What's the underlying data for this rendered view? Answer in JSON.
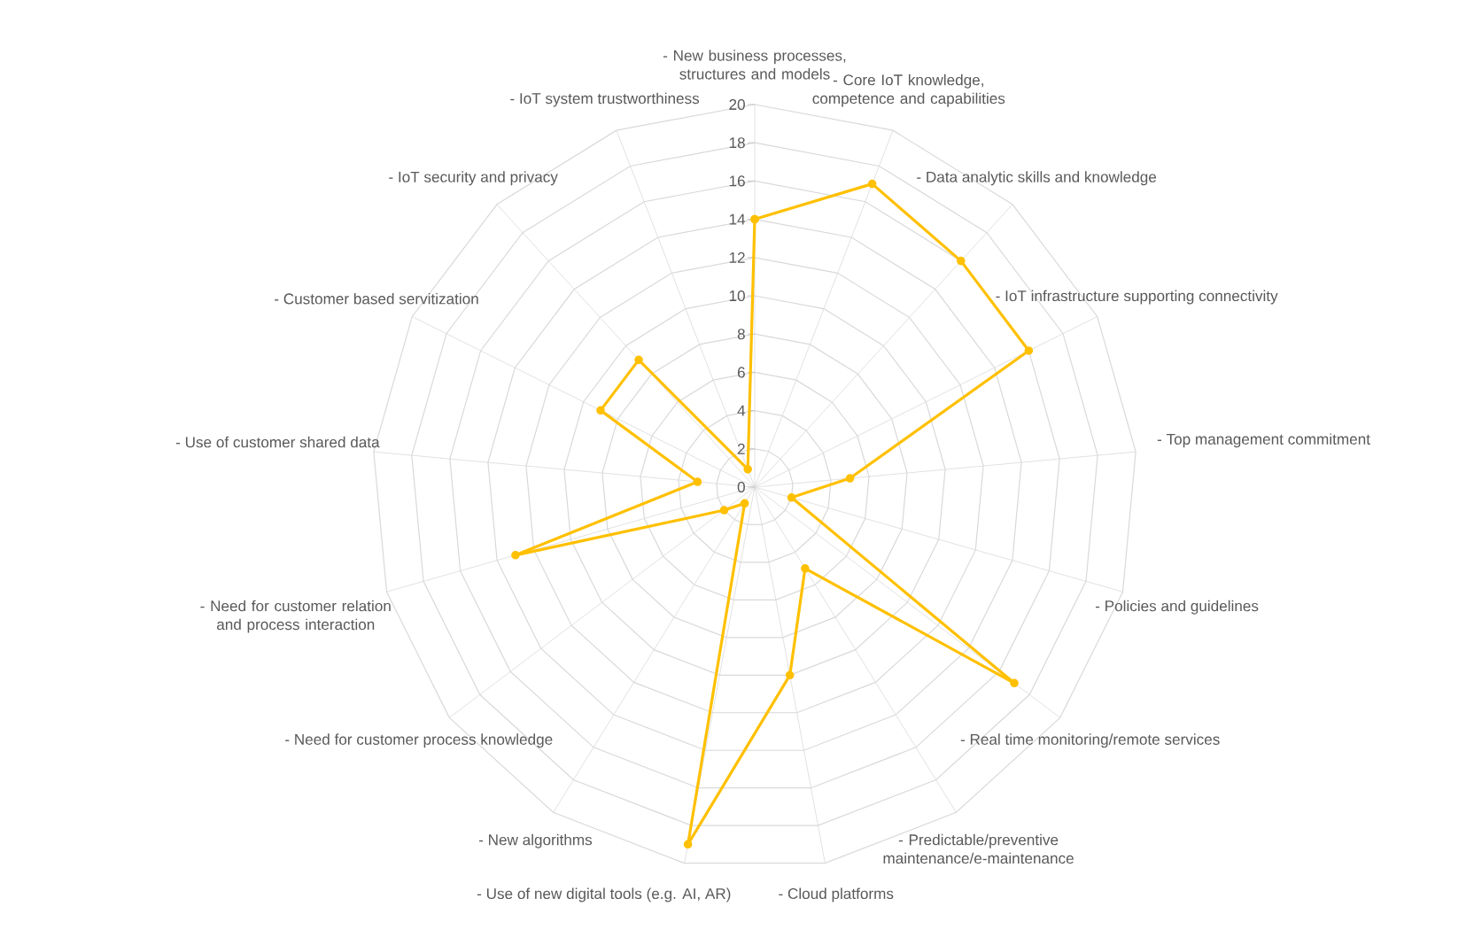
{
  "chart_data": {
    "type": "radar",
    "categories": [
      "- New business processes, structures and models",
      "- Core IoT knowledge, competence and capabilities",
      "- Data analytic skills and knowledge",
      "- IoT infrastructure supporting connectivity",
      "- Top management commitment",
      "- Policies and guidelines",
      "- Real time monitoring/remote services",
      "- Predictable/preventive maintenance/e-maintenance",
      "- Cloud platforms",
      "- Use of new digital tools (e.g. AI, AR)",
      "- New algorithms",
      "- Need for customer process knowledge",
      "- Need for customer relation and process interaction",
      "- Use of customer shared data",
      "- Customer based servitization",
      "- IoT security and privacy",
      "- IoT system trustworthiness"
    ],
    "series": [
      {
        "color": "#ffc000",
        "values": [
          14,
          17,
          16,
          16,
          5,
          2,
          17,
          5,
          10,
          19,
          1,
          2,
          13,
          3,
          9,
          9,
          1
        ]
      }
    ],
    "ylim": [
      0,
      20
    ],
    "yticks": [
      0,
      2,
      4,
      6,
      8,
      10,
      12,
      14,
      16,
      18,
      20
    ],
    "grid": true,
    "marker": "circle",
    "line_style": "solid"
  }
}
